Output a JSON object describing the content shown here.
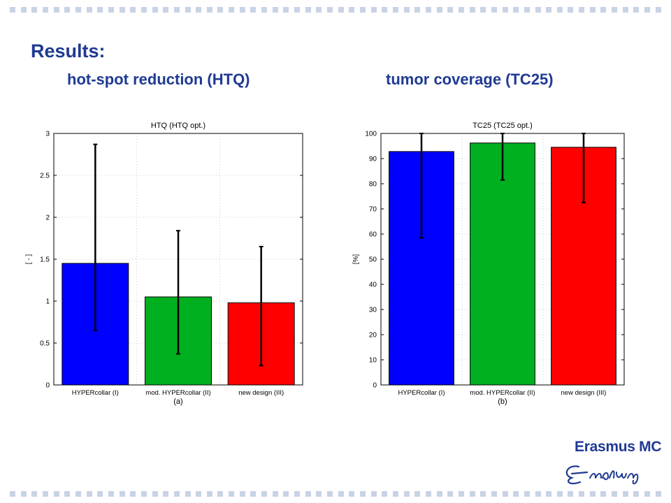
{
  "slide": {
    "title": "Results:",
    "subtitle_left": "hot-spot reduction (HTQ)",
    "subtitle_right": "tumor coverage (TC25)",
    "logo_text": "Erasmus MC",
    "logo_signature": "Erasmus"
  },
  "colors": {
    "heading": "#1f3a93",
    "decor_dots": "#c9d3e6",
    "bar_blue": "#0000ff",
    "bar_green": "#00b020",
    "bar_red": "#ff0000"
  },
  "chart_data": [
    {
      "type": "bar",
      "title": "HTQ (HTQ opt.)",
      "xlabel": "(a)",
      "ylabel": "[ - ]",
      "categories": [
        "HYPERcollar (I)",
        "mod. HYPERcollar (II)",
        "new design (III)"
      ],
      "values": [
        1.45,
        1.05,
        0.98
      ],
      "error_low": [
        0.65,
        0.37,
        0.23
      ],
      "error_high": [
        2.87,
        1.84,
        1.65
      ],
      "bar_colors": [
        "#0000ff",
        "#00b020",
        "#ff0000"
      ],
      "ylim": [
        0,
        3
      ],
      "yticks": [
        0,
        0.5,
        1,
        1.5,
        2,
        2.5,
        3
      ],
      "ytick_labels": [
        "0",
        "0.5",
        "1",
        "1.5",
        "2",
        "2.5",
        "3"
      ],
      "grid": true
    },
    {
      "type": "bar",
      "title": "TC25 (TC25 opt.)",
      "xlabel": "(b)",
      "ylabel": "[%]",
      "categories": [
        "HYPERcollar (I)",
        "mod. HYPERcollar (II)",
        "new design (III)"
      ],
      "values": [
        92.8,
        96.2,
        94.5
      ],
      "error_low": [
        58.5,
        81.5,
        72.5
      ],
      "error_high": [
        100,
        100,
        100
      ],
      "bar_colors": [
        "#0000ff",
        "#00b020",
        "#ff0000"
      ],
      "ylim": [
        0,
        100
      ],
      "yticks": [
        0,
        10,
        20,
        30,
        40,
        50,
        60,
        70,
        80,
        90,
        100
      ],
      "ytick_labels": [
        "0",
        "10",
        "20",
        "30",
        "40",
        "50",
        "60",
        "70",
        "80",
        "90",
        "100"
      ],
      "grid": true
    }
  ]
}
